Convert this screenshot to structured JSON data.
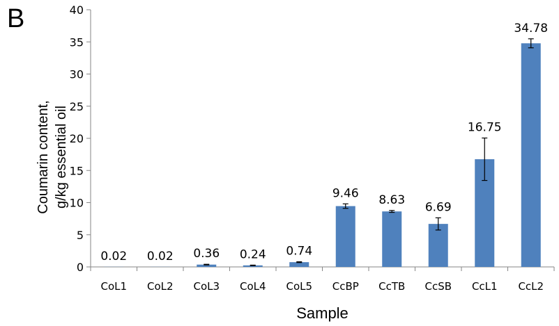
{
  "panel_label": "B",
  "chart_data": {
    "type": "bar",
    "title": "",
    "xlabel": "Sample",
    "ylabel": [
      "Coumarin content,",
      "g/kg essential oil"
    ],
    "ylim": [
      0,
      40
    ],
    "yticks": [
      0,
      5,
      10,
      15,
      20,
      25,
      30,
      35,
      40
    ],
    "grid": false,
    "legend": "none",
    "categories": [
      "CoL1",
      "CoL2",
      "CoL3",
      "CoL4",
      "CoL5",
      "CcBP",
      "CcTB",
      "CcSB",
      "CcL1",
      "CcL2"
    ],
    "values": [
      0.02,
      0.02,
      0.36,
      0.24,
      0.74,
      9.46,
      8.63,
      6.69,
      16.75,
      34.78
    ],
    "value_labels": [
      "0.02",
      "0.02",
      "0.36",
      "0.24",
      "0.74",
      "9.46",
      "8.63",
      "6.69",
      "16.75",
      "34.78"
    ],
    "errors": [
      0,
      0,
      0.05,
      0.04,
      0.06,
      0.35,
      0.15,
      0.95,
      3.3,
      0.7
    ],
    "bar_color": "#4f81bd"
  }
}
